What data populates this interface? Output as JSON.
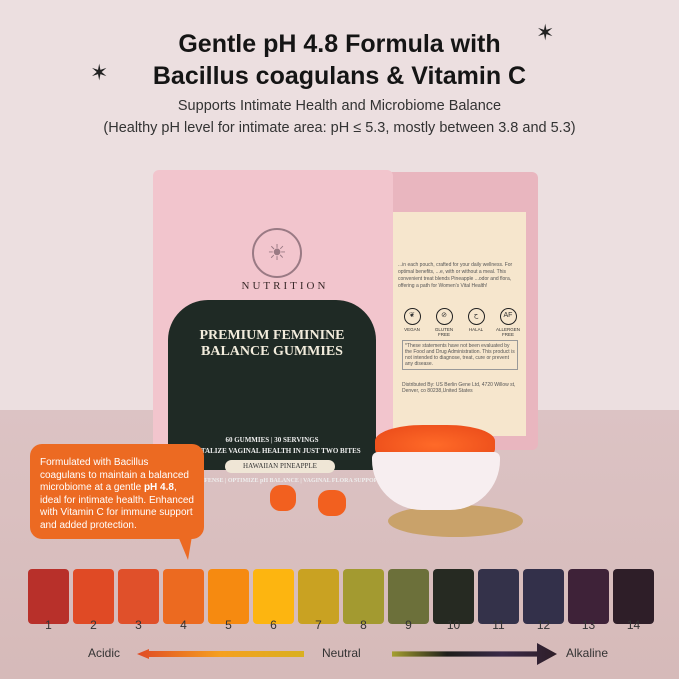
{
  "header": {
    "title_line1": "Gentle pH 4.8 Formula with",
    "title_line2": "Bacillus coagulans & Vitamin C",
    "subtitle": "Supports Intimate Health and Microbiome Balance",
    "note": "(Healthy pH level for intimate area: pH ≤ 5.3, mostly between 3.8 and 5.3)"
  },
  "product": {
    "brand": "NUTRITION",
    "name": "PREMIUM FEMININE BALANCE GUMMIES",
    "servings": "60 GUMMIES | 30 SERVINGS",
    "tagline": "REVITALIZE VAGINAL HEALTH IN JUST TWO BITES",
    "flavor": "HAWAIIAN PINEAPPLE",
    "benefits": "IMMUNE DEFENSE | OPTIMIZE pH BALANCE | VAGINAL FLORA SUPPORT",
    "back": {
      "description": "...in each pouch, crafted for your daily wellness. For optimal benefits, ...e, with or without a meal. This convenient treat blends Pineapple ...odor and flora, offering a path for Women's Vital Health!",
      "badges": [
        "VEGAN",
        "GLUTEN FREE",
        "HALAL",
        "ALLERGEN FREE"
      ],
      "disclaimer": "*These statements have not been evaluated by the Food and Drug Administration. This product is not intended to diagnose, treat, cure or prevent any disease.",
      "distributor": "Distributed By: US Berlin Gene Ltd, 4720 Willow st, Denver, co 80238,United States"
    }
  },
  "callout": {
    "pre": "Formulated with Bacillus coagulans to maintain a balanced microbiome at a gentle ",
    "bold": "pH 4.8",
    "post": ", ideal for intimate health. Enhanced with Vitamin C for immune support and added protection."
  },
  "scale": {
    "values": [
      "1",
      "2",
      "3",
      "4",
      "5",
      "6",
      "7",
      "8",
      "9",
      "10",
      "11",
      "12",
      "13",
      "14"
    ],
    "colors": [
      "#b8302a",
      "#e04a25",
      "#e0502a",
      "#ec6a20",
      "#f68a10",
      "#fdb510",
      "#c9a222",
      "#a39a30",
      "#6c703a",
      "#262a22",
      "#34324a",
      "#33304a",
      "#3e2238",
      "#2e1e28"
    ],
    "acidic": "Acidic",
    "neutral": "Neutral",
    "alkaline": "Alkaline"
  }
}
